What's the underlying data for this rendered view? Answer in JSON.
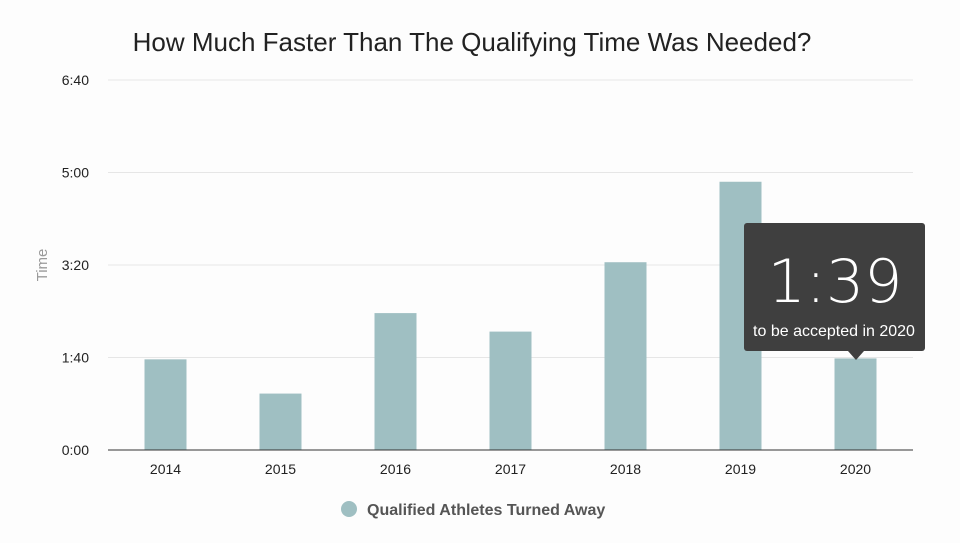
{
  "chart_data": {
    "type": "bar",
    "title": "How Much Faster Than The Qualifying Time Was Needed?",
    "xlabel": "",
    "ylabel": "Time",
    "categories": [
      "2014",
      "2015",
      "2016",
      "2017",
      "2018",
      "2019",
      "2020"
    ],
    "series": [
      {
        "name": "Qualified Athletes Turned Away",
        "values": [
          98,
          61,
          148,
          128,
          203,
          290,
          99
        ],
        "value_unit": "seconds",
        "color": "#9fbfc2"
      }
    ],
    "ylim": [
      0,
      400
    ],
    "yticks": [
      0,
      100,
      200,
      300,
      400
    ],
    "ytick_labels": [
      "0:00",
      "1:40",
      "3:20",
      "5:00",
      "6:40"
    ],
    "grid": true,
    "legend": "bottom-center",
    "tooltip": {
      "category": "2020",
      "value_text": "1:39",
      "caption": "to be accepted in 2020"
    },
    "axis_color": "#333333",
    "grid_color": "#e6e6e6",
    "tooltip_bg": "#3f3f3f"
  }
}
